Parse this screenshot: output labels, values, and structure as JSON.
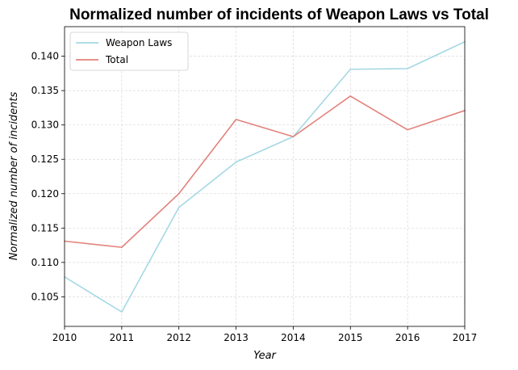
{
  "chart_data": {
    "type": "line",
    "title": "Normalized number of incidents of Weapon Laws vs Total",
    "xlabel": "Year",
    "ylabel": "Normalized number of incidents",
    "x": [
      2010,
      2011,
      2012,
      2013,
      2014,
      2015,
      2016,
      2017
    ],
    "x_tick_labels": [
      "2010",
      "2011",
      "2012",
      "2013",
      "2014",
      "2015",
      "2016",
      "2017"
    ],
    "xlim": [
      2010,
      2017
    ],
    "ylim": [
      0.1007,
      0.1443
    ],
    "y_ticks": [
      0.105,
      0.11,
      0.115,
      0.12,
      0.125,
      0.13,
      0.135,
      0.14
    ],
    "y_tick_labels": [
      "0.105",
      "0.110",
      "0.115",
      "0.120",
      "0.125",
      "0.130",
      "0.135",
      "0.140"
    ],
    "grid": true,
    "legend_position": "top-left",
    "series": [
      {
        "name": "Weapon Laws",
        "color": "#a6d8e4",
        "values": [
          0.1079,
          0.1028,
          0.118,
          0.1246,
          0.1283,
          0.1381,
          0.1382,
          0.1421
        ]
      },
      {
        "name": "Total",
        "color": "#e2827c",
        "values": [
          0.1131,
          0.1122,
          0.12,
          0.1308,
          0.1283,
          0.1342,
          0.1293,
          0.1321
        ]
      }
    ]
  }
}
